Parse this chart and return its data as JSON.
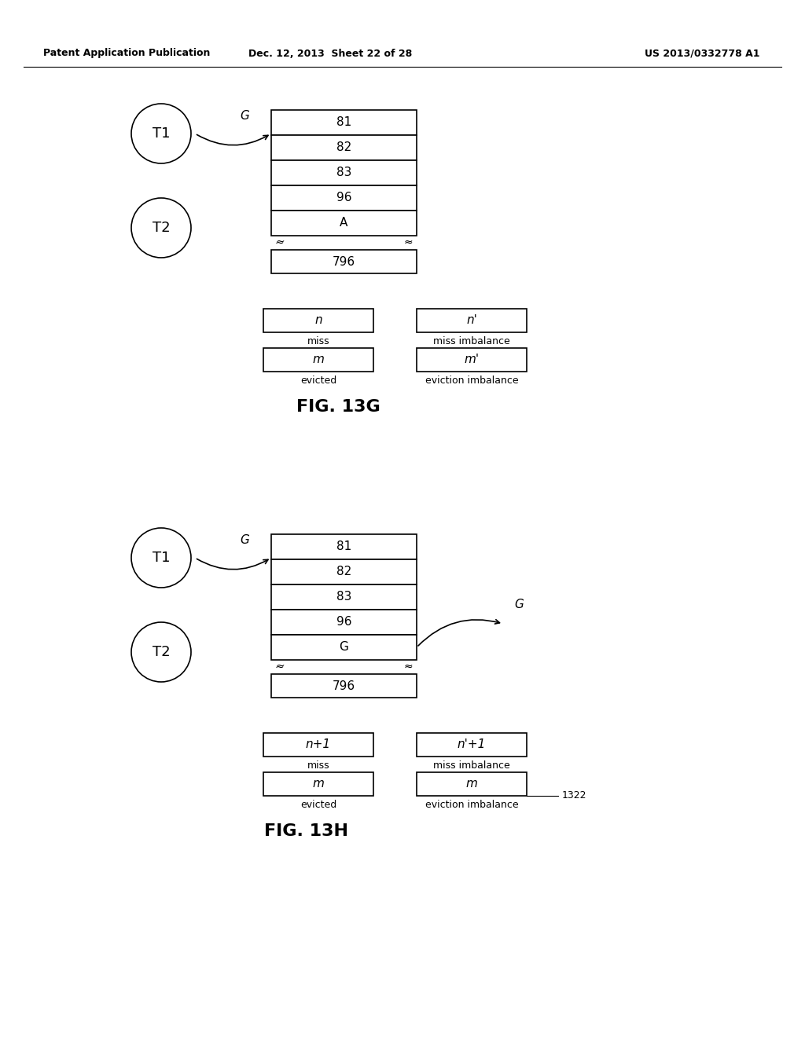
{
  "header_left": "Patent Application Publication",
  "header_mid": "Dec. 12, 2013  Sheet 22 of 28",
  "header_right": "US 2013/0332778 A1",
  "fig13g": {
    "title": "FIG. 13G",
    "circle1_label": "T1",
    "circle2_label": "T2",
    "arrow_label": "G",
    "stack_items": [
      "81",
      "82",
      "83",
      "96",
      "A"
    ],
    "bottom_item": "796",
    "box1_val": "n",
    "box1_label": "miss",
    "box2_val": "m",
    "box2_label": "evicted",
    "box3_val": "n'",
    "box3_label": "miss imbalance",
    "box4_val": "m'",
    "box4_label": "eviction imbalance"
  },
  "fig13h": {
    "title": "FIG. 13H",
    "ref_num": "1322",
    "circle1_label": "T1",
    "circle2_label": "T2",
    "arrow_label_left": "G",
    "arrow_label_right": "G",
    "stack_items": [
      "81",
      "82",
      "83",
      "96",
      "G"
    ],
    "bottom_item": "796",
    "box1_val": "n+1",
    "box1_label": "miss",
    "box2_val": "m",
    "box2_label": "evicted",
    "box3_val": "n'+1",
    "box3_label": "miss imbalance",
    "box4_val": "m",
    "box4_label": "eviction imbalance"
  },
  "bg_color": "#ffffff",
  "line_color": "#000000",
  "text_color": "#000000",
  "font_family": "DejaVu Sans"
}
